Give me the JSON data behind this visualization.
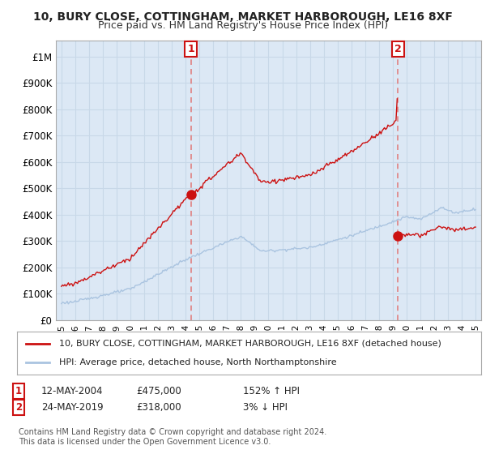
{
  "title": "10, BURY CLOSE, COTTINGHAM, MARKET HARBOROUGH, LE16 8XF",
  "subtitle": "Price paid vs. HM Land Registry's House Price Index (HPI)",
  "ylabel_ticks": [
    "£0",
    "£100K",
    "£200K",
    "£300K",
    "£400K",
    "£500K",
    "£600K",
    "£700K",
    "£800K",
    "£900K",
    "£1M"
  ],
  "ytick_values": [
    0,
    100000,
    200000,
    300000,
    400000,
    500000,
    600000,
    700000,
    800000,
    900000,
    1000000
  ],
  "ylim": [
    0,
    1060000
  ],
  "xlim_start": 1994.6,
  "xlim_end": 2025.4,
  "sale1_x": 2004.37,
  "sale1_y": 475000,
  "sale2_x": 2019.38,
  "sale2_y": 318000,
  "hpi_color": "#aac4e0",
  "price_color": "#cc1111",
  "marker_color": "#cc1111",
  "vline_color": "#e08080",
  "annotation_box_color": "#cc1111",
  "plot_bg_color": "#dce8f5",
  "legend_label1": "10, BURY CLOSE, COTTINGHAM, MARKET HARBOROUGH, LE16 8XF (detached house)",
  "legend_label2": "HPI: Average price, detached house, North Northamptonshire",
  "note1_date": "12-MAY-2004",
  "note1_price": "£475,000",
  "note1_hpi": "152% ↑ HPI",
  "note2_date": "24-MAY-2019",
  "note2_price": "£318,000",
  "note2_hpi": "3% ↓ HPI",
  "footer": "Contains HM Land Registry data © Crown copyright and database right 2024.\nThis data is licensed under the Open Government Licence v3.0.",
  "background_color": "#ffffff",
  "grid_color": "#c8d8e8"
}
